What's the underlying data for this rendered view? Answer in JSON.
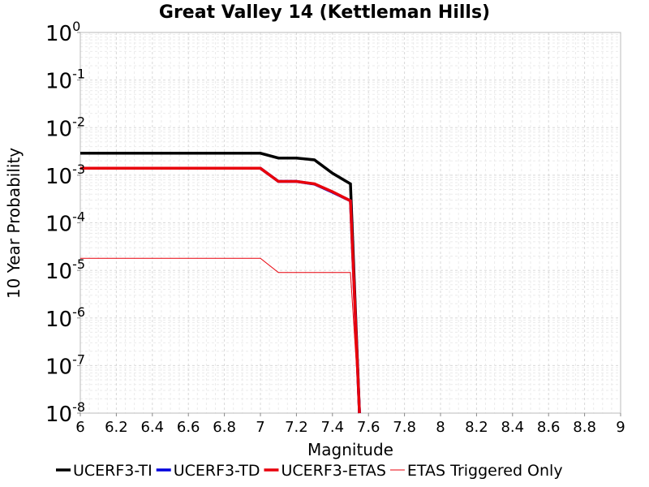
{
  "chart_data": {
    "type": "line",
    "title": "Great Valley 14 (Kettleman Hills)",
    "xlabel": "Magnitude",
    "ylabel": "10 Year Probability",
    "xlim": [
      6,
      9
    ],
    "ylim": [
      1e-08,
      1
    ],
    "yscale": "log",
    "grid": true,
    "legend_position": "bottom",
    "xticks": [
      "6",
      "6.2",
      "6.4",
      "6.6",
      "6.8",
      "7",
      "7.2",
      "7.4",
      "7.6",
      "7.8",
      "8",
      "8.2",
      "8.4",
      "8.6",
      "8.8",
      "9"
    ],
    "yticks": [
      {
        "base": "10",
        "exp": "0"
      },
      {
        "base": "10",
        "exp": "-1"
      },
      {
        "base": "10",
        "exp": "-2"
      },
      {
        "base": "10",
        "exp": "-3"
      },
      {
        "base": "10",
        "exp": "-4"
      },
      {
        "base": "10",
        "exp": "-5"
      },
      {
        "base": "10",
        "exp": "-6"
      },
      {
        "base": "10",
        "exp": "-7"
      },
      {
        "base": "10",
        "exp": "-8"
      }
    ],
    "series": [
      {
        "name": "UCERF3-TI",
        "color": "#000000",
        "width": "thick",
        "x": [
          6.0,
          6.1,
          6.2,
          6.3,
          6.4,
          6.5,
          6.6,
          6.7,
          6.8,
          6.9,
          7.0,
          7.1,
          7.2,
          7.3,
          7.4,
          7.5,
          7.55
        ],
        "y": [
          0.0029,
          0.0029,
          0.0029,
          0.0029,
          0.0029,
          0.0029,
          0.0029,
          0.0029,
          0.0029,
          0.0029,
          0.0029,
          0.0023,
          0.0023,
          0.0021,
          0.0011,
          0.00066,
          1e-08
        ]
      },
      {
        "name": "UCERF3-TD",
        "color": "#0000dd",
        "width": "thick",
        "x": [
          6.0,
          6.1,
          6.2,
          6.3,
          6.4,
          6.5,
          6.6,
          6.7,
          6.8,
          6.9,
          7.0,
          7.1,
          7.2,
          7.3,
          7.4,
          7.5,
          7.55
        ],
        "y": [
          0.0014,
          0.0014,
          0.0014,
          0.0014,
          0.0014,
          0.0014,
          0.0014,
          0.0014,
          0.0014,
          0.0014,
          0.0014,
          0.00074,
          0.00074,
          0.00065,
          0.00044,
          0.00029,
          1e-08
        ]
      },
      {
        "name": "UCERF3-ETAS",
        "color": "#e8000b",
        "width": "thick",
        "x": [
          6.0,
          6.1,
          6.2,
          6.3,
          6.4,
          6.5,
          6.6,
          6.7,
          6.8,
          6.9,
          7.0,
          7.1,
          7.2,
          7.3,
          7.4,
          7.5,
          7.55
        ],
        "y": [
          0.0014,
          0.0014,
          0.0014,
          0.0014,
          0.0014,
          0.0014,
          0.0014,
          0.0014,
          0.0014,
          0.0014,
          0.0014,
          0.00074,
          0.00074,
          0.00066,
          0.00045,
          0.00029,
          1e-08
        ]
      },
      {
        "name": "ETAS Triggered Only",
        "color": "#e8000b",
        "width": "thin",
        "x": [
          6.0,
          6.1,
          6.2,
          6.3,
          6.4,
          6.5,
          6.6,
          6.7,
          6.8,
          6.9,
          7.0,
          7.1,
          7.2,
          7.3,
          7.4,
          7.5,
          7.55
        ],
        "y": [
          1.8e-05,
          1.8e-05,
          1.8e-05,
          1.8e-05,
          1.8e-05,
          1.8e-05,
          1.8e-05,
          1.8e-05,
          1.8e-05,
          1.8e-05,
          1.8e-05,
          9e-06,
          9e-06,
          9e-06,
          9e-06,
          9e-06,
          1e-08
        ]
      }
    ]
  }
}
